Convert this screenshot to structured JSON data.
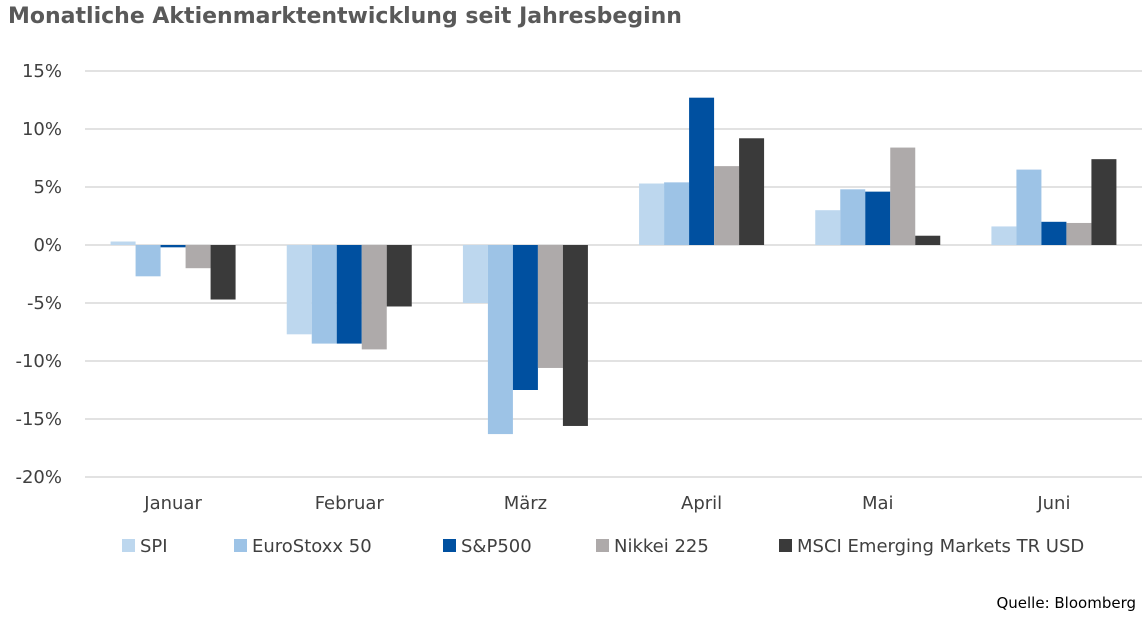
{
  "title": "Monatliche Aktienmarktentwicklung seit Jahresbeginn",
  "source": "Quelle: Bloomberg",
  "chart_data": {
    "type": "bar",
    "title": "Monatliche Aktienmarktentwicklung seit Jahresbeginn",
    "categories": [
      "Januar",
      "Februar",
      "März",
      "April",
      "Mai",
      "Juni"
    ],
    "ylim": [
      -20,
      15
    ],
    "yticks": [
      15,
      10,
      5,
      0,
      -5,
      -10,
      -15,
      -20
    ],
    "ytick_labels": [
      "15%",
      "10%",
      "5%",
      "0%",
      "-5%",
      "-10%",
      "-15%",
      "-20%"
    ],
    "grid": true,
    "legend_position": "bottom",
    "series": [
      {
        "name": "SPI",
        "color": "#bdd7ee",
        "values": [
          0.3,
          -7.7,
          -5.0,
          5.3,
          3.0,
          1.6
        ]
      },
      {
        "name": "EuroStoxx 50",
        "color": "#9dc3e6",
        "values": [
          -2.7,
          -8.5,
          -16.3,
          5.4,
          4.8,
          6.5
        ]
      },
      {
        "name": "S&P500",
        "color": "#0050a0",
        "values": [
          -0.2,
          -8.5,
          -12.5,
          12.7,
          4.6,
          2.0
        ]
      },
      {
        "name": "Nikkei 225",
        "color": "#aeaaaa",
        "values": [
          -2.0,
          -9.0,
          -10.6,
          6.8,
          8.4,
          1.9
        ]
      },
      {
        "name": "MSCI Emerging Markets TR USD",
        "color": "#3a3a3a",
        "values": [
          -4.7,
          -5.3,
          -15.6,
          9.2,
          0.8,
          7.4
        ]
      }
    ]
  }
}
